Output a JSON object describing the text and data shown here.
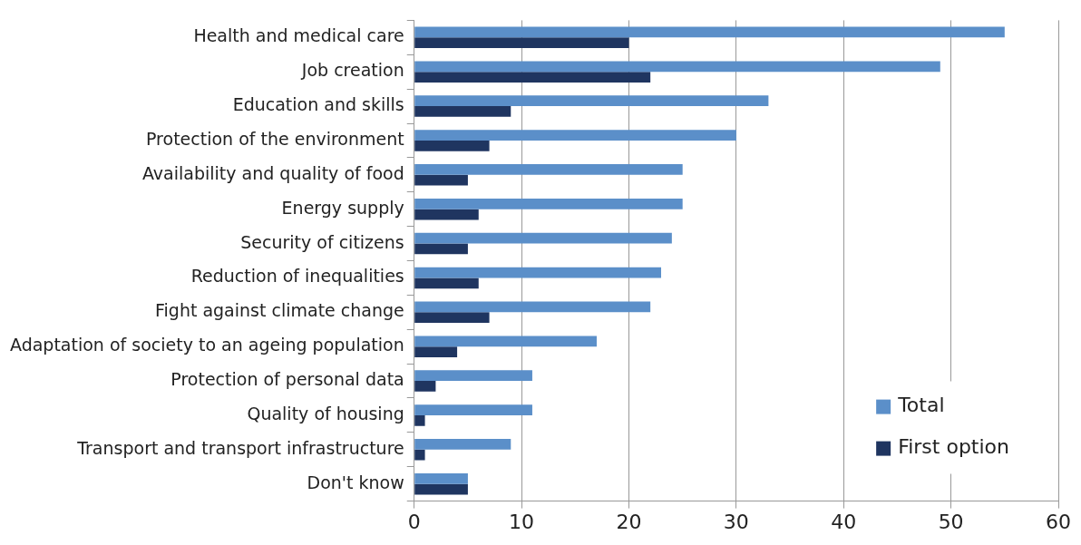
{
  "chart_data": {
    "type": "bar",
    "orientation": "horizontal",
    "categories": [
      "Health and medical care",
      "Job creation",
      "Education and skills",
      "Protection of the environment",
      "Availability and quality of food",
      "Energy supply",
      "Security of citizens",
      "Reduction of inequalities",
      "Fight against climate change",
      "Adaptation of society to an ageing population",
      "Protection of personal data",
      "Quality of housing",
      "Transport and transport infrastructure",
      "Don't know"
    ],
    "series": [
      {
        "name": "Total",
        "color": "#5b8fc9",
        "values": [
          55,
          49,
          33,
          30,
          25,
          25,
          24,
          23,
          22,
          17,
          11,
          11,
          9,
          5
        ]
      },
      {
        "name": "First option",
        "color": "#1f3560",
        "values": [
          20,
          22,
          9,
          7,
          5,
          6,
          5,
          6,
          7,
          4,
          2,
          1,
          1,
          5
        ]
      }
    ],
    "xlim": [
      0,
      60
    ],
    "xticks": [
      0,
      10,
      20,
      30,
      40,
      50,
      60
    ],
    "grid": "x",
    "legend": "bottom right"
  }
}
